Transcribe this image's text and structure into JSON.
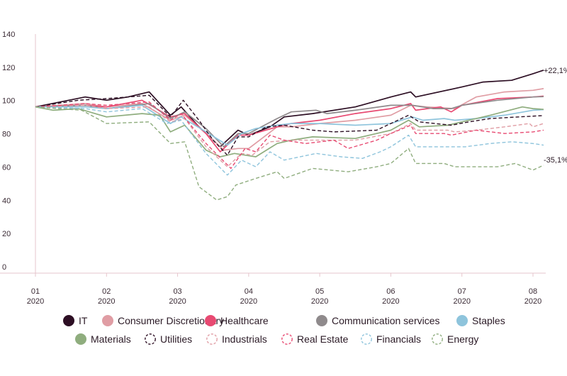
{
  "chart_data": {
    "type": "line",
    "title": "",
    "xlabel": "",
    "ylabel": "",
    "ylim": [
      0,
      140
    ],
    "yticks": [
      0,
      20,
      40,
      60,
      80,
      100,
      120,
      140
    ],
    "xticks": [
      {
        "pos": 1,
        "top": "01",
        "bottom": "2020"
      },
      {
        "pos": 2,
        "top": "02",
        "bottom": "2020"
      },
      {
        "pos": 3,
        "top": "03",
        "bottom": "2020"
      },
      {
        "pos": 4,
        "top": "04",
        "bottom": "2020"
      },
      {
        "pos": 5,
        "top": "05",
        "bottom": "2020"
      },
      {
        "pos": 6,
        "top": "06",
        "bottom": "2020"
      },
      {
        "pos": 7,
        "top": "07",
        "bottom": "2020"
      },
      {
        "pos": 8,
        "top": "08",
        "bottom": "2020"
      }
    ],
    "xlim": [
      1,
      8.15
    ],
    "grid": false,
    "legend_position": "bottom",
    "annotations": [
      "+22,1%",
      "-35,1%"
    ],
    "series": [
      {
        "name": "IT",
        "color": "#2d0f24",
        "dashed": false,
        "points": [
          [
            1,
            100
          ],
          [
            1.7,
            106
          ],
          [
            2,
            104
          ],
          [
            2.3,
            106
          ],
          [
            2.6,
            109
          ],
          [
            2.9,
            95
          ],
          [
            3.05,
            100
          ],
          [
            3.3,
            88
          ],
          [
            3.6,
            76
          ],
          [
            3.85,
            86
          ],
          [
            4,
            83
          ],
          [
            4.3,
            88
          ],
          [
            4.5,
            94
          ],
          [
            4.9,
            96
          ],
          [
            5.5,
            100
          ],
          [
            6,
            106
          ],
          [
            6.28,
            109
          ],
          [
            6.35,
            106
          ],
          [
            7,
            112
          ],
          [
            7.3,
            115
          ],
          [
            7.7,
            116
          ],
          [
            8,
            120
          ],
          [
            8.15,
            122.1
          ]
        ]
      },
      {
        "name": "Consumer Discretionary",
        "color": "#e09da4",
        "dashed": false,
        "points": [
          [
            1,
            100
          ],
          [
            1.7,
            102
          ],
          [
            2,
            100
          ],
          [
            2.5,
            102
          ],
          [
            2.9,
            92
          ],
          [
            3.1,
            95
          ],
          [
            3.4,
            84
          ],
          [
            3.65,
            74
          ],
          [
            3.85,
            75
          ],
          [
            4,
            75
          ],
          [
            4.4,
            88
          ],
          [
            4.6,
            88
          ],
          [
            5,
            90
          ],
          [
            5.5,
            92
          ],
          [
            6,
            95
          ],
          [
            6.28,
            101
          ],
          [
            6.5,
            100
          ],
          [
            6.9,
            99
          ],
          [
            7.2,
            106
          ],
          [
            7.6,
            109
          ],
          [
            8,
            110
          ],
          [
            8.15,
            111
          ]
        ]
      },
      {
        "name": "Healthcare",
        "color": "#e84a72",
        "dashed": false,
        "points": [
          [
            1,
            100
          ],
          [
            1.7,
            101
          ],
          [
            2,
            100
          ],
          [
            2.5,
            104
          ],
          [
            2.9,
            94
          ],
          [
            3.1,
            96
          ],
          [
            3.4,
            84
          ],
          [
            3.6,
            73
          ],
          [
            3.85,
            83
          ],
          [
            4,
            83
          ],
          [
            4.4,
            88
          ],
          [
            4.6,
            90
          ],
          [
            5,
            92
          ],
          [
            5.5,
            96
          ],
          [
            6,
            99
          ],
          [
            6.28,
            102
          ],
          [
            6.35,
            98
          ],
          [
            6.7,
            100
          ],
          [
            6.85,
            97
          ],
          [
            7,
            101
          ],
          [
            7.5,
            105
          ],
          [
            8,
            106
          ],
          [
            8.15,
            106.5
          ]
        ]
      },
      {
        "name": "Communication services",
        "color": "#8f8a8c",
        "dashed": false,
        "points": [
          [
            1,
            100
          ],
          [
            1.7,
            101
          ],
          [
            2,
            99
          ],
          [
            2.6,
            102
          ],
          [
            2.9,
            93
          ],
          [
            3.1,
            97
          ],
          [
            3.4,
            87
          ],
          [
            3.65,
            76
          ],
          [
            3.85,
            84
          ],
          [
            4,
            84
          ],
          [
            4.4,
            93
          ],
          [
            4.6,
            97
          ],
          [
            4.95,
            98
          ],
          [
            5.1,
            96
          ],
          [
            5.5,
            98
          ],
          [
            6,
            101
          ],
          [
            6.3,
            101
          ],
          [
            6.6,
            99
          ],
          [
            6.85,
            99
          ],
          [
            7,
            101
          ],
          [
            7.5,
            104
          ],
          [
            8,
            106
          ],
          [
            8.15,
            106.2
          ]
        ]
      },
      {
        "name": "Staples",
        "color": "#8ec4dc",
        "dashed": false,
        "points": [
          [
            1,
            100
          ],
          [
            1.7,
            100
          ],
          [
            2,
            99
          ],
          [
            2.5,
            101
          ],
          [
            2.9,
            90
          ],
          [
            3.05,
            94
          ],
          [
            3.4,
            85
          ],
          [
            3.7,
            77
          ],
          [
            3.9,
            84
          ],
          [
            4.1,
            87
          ],
          [
            4.4,
            89
          ],
          [
            4.6,
            90
          ],
          [
            5,
            90
          ],
          [
            5.5,
            89
          ],
          [
            6,
            90
          ],
          [
            6.3,
            94
          ],
          [
            6.45,
            92
          ],
          [
            6.75,
            93
          ],
          [
            6.9,
            92
          ],
          [
            7.2,
            93
          ],
          [
            7.6,
            95
          ],
          [
            8,
            98
          ],
          [
            8.15,
            98.4
          ]
        ]
      },
      {
        "name": "Materials",
        "color": "#8fad7e",
        "dashed": false,
        "points": [
          [
            1,
            100
          ],
          [
            1.25,
            98
          ],
          [
            1.6,
            99
          ],
          [
            2,
            94
          ],
          [
            2.5,
            96
          ],
          [
            2.75,
            95
          ],
          [
            2.9,
            85
          ],
          [
            3.1,
            89
          ],
          [
            3.4,
            74
          ],
          [
            3.6,
            70
          ],
          [
            3.8,
            72
          ],
          [
            3.95,
            71
          ],
          [
            4.1,
            70
          ],
          [
            4.4,
            78
          ],
          [
            4.6,
            80
          ],
          [
            4.9,
            82
          ],
          [
            5.5,
            81
          ],
          [
            5.8,
            84
          ],
          [
            6,
            86
          ],
          [
            6.25,
            92
          ],
          [
            6.4,
            88
          ],
          [
            6.8,
            89
          ],
          [
            7,
            91
          ],
          [
            7.4,
            95
          ],
          [
            7.85,
            100
          ],
          [
            8,
            99
          ],
          [
            8.15,
            98.5
          ]
        ]
      },
      {
        "name": "Utilities",
        "color": "#2d0f24",
        "dashed": true,
        "points": [
          [
            1,
            100
          ],
          [
            1.6,
            104
          ],
          [
            2,
            105
          ],
          [
            2.6,
            107
          ],
          [
            2.9,
            94
          ],
          [
            3.08,
            104
          ],
          [
            3.3,
            92
          ],
          [
            3.5,
            80
          ],
          [
            3.7,
            71
          ],
          [
            3.85,
            82
          ],
          [
            4,
            82
          ],
          [
            4.25,
            88
          ],
          [
            4.5,
            89
          ],
          [
            4.9,
            86
          ],
          [
            5.2,
            85
          ],
          [
            5.8,
            86
          ],
          [
            6,
            90
          ],
          [
            6.25,
            95
          ],
          [
            6.4,
            91
          ],
          [
            6.85,
            89
          ],
          [
            7.1,
            91
          ],
          [
            7.4,
            93
          ],
          [
            7.8,
            94
          ],
          [
            8.15,
            94.8
          ]
        ]
      },
      {
        "name": "Industrials",
        "color": "#e09da4",
        "dashed": true,
        "points": [
          [
            1,
            100
          ],
          [
            1.7,
            101
          ],
          [
            2,
            99
          ],
          [
            2.6,
            100
          ],
          [
            2.9,
            91
          ],
          [
            3.1,
            93
          ],
          [
            3.4,
            76
          ],
          [
            3.7,
            64
          ],
          [
            3.9,
            72
          ],
          [
            4.05,
            71
          ],
          [
            4.3,
            79
          ],
          [
            4.6,
            80
          ],
          [
            5,
            80
          ],
          [
            5.5,
            80
          ],
          [
            6,
            84
          ],
          [
            6.28,
            90
          ],
          [
            6.35,
            86
          ],
          [
            6.8,
            86
          ],
          [
            6.9,
            85
          ],
          [
            7.2,
            86
          ],
          [
            7.6,
            88
          ],
          [
            7.95,
            90
          ],
          [
            8,
            88
          ],
          [
            8.15,
            90
          ]
        ]
      },
      {
        "name": "Real Estate",
        "color": "#e84a72",
        "dashed": true,
        "points": [
          [
            1,
            100
          ],
          [
            1.7,
            102
          ],
          [
            2,
            101
          ],
          [
            2.6,
            103
          ],
          [
            2.9,
            92
          ],
          [
            3.05,
            96
          ],
          [
            3.4,
            78
          ],
          [
            3.75,
            63
          ],
          [
            3.95,
            75
          ],
          [
            4.1,
            73
          ],
          [
            4.3,
            83
          ],
          [
            4.5,
            80
          ],
          [
            4.8,
            78
          ],
          [
            5.2,
            80
          ],
          [
            5.4,
            75
          ],
          [
            5.8,
            80
          ],
          [
            6,
            84
          ],
          [
            6.28,
            89
          ],
          [
            6.35,
            84
          ],
          [
            6.75,
            84
          ],
          [
            6.85,
            83
          ],
          [
            7.2,
            86
          ],
          [
            7.6,
            84
          ],
          [
            8,
            85
          ],
          [
            8.15,
            86
          ]
        ]
      },
      {
        "name": "Financials",
        "color": "#8ec4dc",
        "dashed": true,
        "points": [
          [
            1,
            100
          ],
          [
            1.7,
            99
          ],
          [
            2,
            97
          ],
          [
            2.5,
            99
          ],
          [
            2.85,
            90
          ],
          [
            3.05,
            92
          ],
          [
            3.4,
            72
          ],
          [
            3.7,
            59
          ],
          [
            3.9,
            68
          ],
          [
            4.1,
            64
          ],
          [
            4.3,
            73
          ],
          [
            4.5,
            68
          ],
          [
            4.95,
            72
          ],
          [
            5.3,
            70
          ],
          [
            5.6,
            69
          ],
          [
            5.85,
            73
          ],
          [
            6,
            76
          ],
          [
            6.25,
            83
          ],
          [
            6.35,
            76
          ],
          [
            6.9,
            76
          ],
          [
            7.05,
            76
          ],
          [
            7.4,
            78
          ],
          [
            7.7,
            79
          ],
          [
            8,
            78
          ],
          [
            8.15,
            77
          ]
        ]
      },
      {
        "name": "Energy",
        "color": "#8fad7e",
        "dashed": true,
        "points": [
          [
            1,
            100
          ],
          [
            1.65,
            98
          ],
          [
            2,
            90
          ],
          [
            2.6,
            91
          ],
          [
            2.9,
            78
          ],
          [
            3.1,
            79
          ],
          [
            3.3,
            52
          ],
          [
            3.55,
            44
          ],
          [
            3.7,
            46
          ],
          [
            3.82,
            53
          ],
          [
            4.1,
            57
          ],
          [
            4.4,
            61
          ],
          [
            4.5,
            57
          ],
          [
            4.9,
            63
          ],
          [
            5.4,
            61
          ],
          [
            5.8,
            64
          ],
          [
            6,
            66
          ],
          [
            6.25,
            75
          ],
          [
            6.35,
            66
          ],
          [
            6.75,
            66
          ],
          [
            6.9,
            64
          ],
          [
            7.2,
            64
          ],
          [
            7.5,
            64
          ],
          [
            7.75,
            66
          ],
          [
            8,
            62
          ],
          [
            8.15,
            64.9
          ]
        ]
      }
    ]
  }
}
